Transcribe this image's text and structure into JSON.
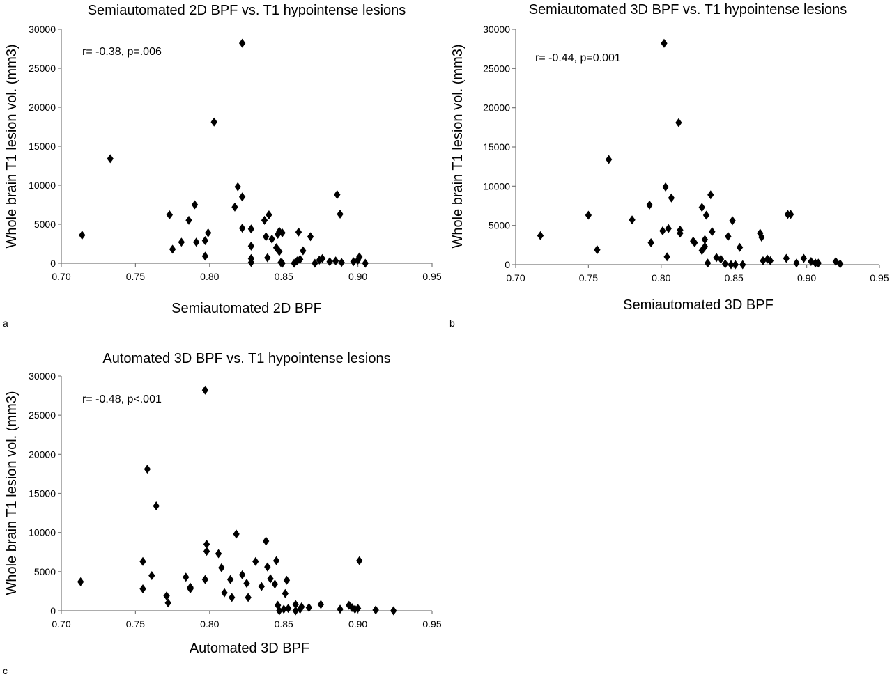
{
  "panels": [
    {
      "letter": "a"
    },
    {
      "letter": "b"
    },
    {
      "letter": "c"
    }
  ],
  "chart_data": [
    {
      "type": "scatter",
      "title": "Semiautomated 2D BPF vs. T1 hypointense lesions",
      "xlabel": "Semiautomated 2D BPF",
      "ylabel": "Whole brain T1 lesion  vol. (mm3)",
      "annotation": "r= -0.38, p=.006",
      "xlim": [
        0.7,
        0.95
      ],
      "ylim": [
        0,
        30000
      ],
      "xticks": [
        "0.70",
        "0.75",
        "0.80",
        "0.85",
        "0.90",
        "0.95"
      ],
      "yticks": [
        "0",
        "5000",
        "10000",
        "15000",
        "20000",
        "25000",
        "30000"
      ],
      "marker": "diamond",
      "grid": false,
      "points": [
        [
          0.714,
          3600
        ],
        [
          0.733,
          13400
        ],
        [
          0.773,
          6200
        ],
        [
          0.775,
          1800
        ],
        [
          0.781,
          2700
        ],
        [
          0.786,
          5500
        ],
        [
          0.79,
          7500
        ],
        [
          0.791,
          2700
        ],
        [
          0.797,
          2900
        ],
        [
          0.797,
          900
        ],
        [
          0.799,
          3900
        ],
        [
          0.803,
          18100
        ],
        [
          0.817,
          7200
        ],
        [
          0.819,
          9800
        ],
        [
          0.822,
          8500
        ],
        [
          0.822,
          4500
        ],
        [
          0.822,
          28200
        ],
        [
          0.828,
          4400
        ],
        [
          0.828,
          2200
        ],
        [
          0.828,
          600
        ],
        [
          0.828,
          100
        ],
        [
          0.837,
          5500
        ],
        [
          0.838,
          3400
        ],
        [
          0.839,
          700
        ],
        [
          0.84,
          6200
        ],
        [
          0.842,
          3100
        ],
        [
          0.845,
          2000
        ],
        [
          0.846,
          3700
        ],
        [
          0.847,
          4100
        ],
        [
          0.847,
          1500
        ],
        [
          0.848,
          100
        ],
        [
          0.849,
          3900
        ],
        [
          0.849,
          0
        ],
        [
          0.857,
          0
        ],
        [
          0.859,
          300
        ],
        [
          0.86,
          4000
        ],
        [
          0.861,
          500
        ],
        [
          0.863,
          1600
        ],
        [
          0.868,
          3400
        ],
        [
          0.871,
          0
        ],
        [
          0.874,
          400
        ],
        [
          0.876,
          600
        ],
        [
          0.881,
          200
        ],
        [
          0.885,
          300
        ],
        [
          0.886,
          8800
        ],
        [
          0.888,
          6300
        ],
        [
          0.889,
          100
        ],
        [
          0.897,
          200
        ],
        [
          0.9,
          400
        ],
        [
          0.901,
          800
        ],
        [
          0.905,
          0
        ]
      ]
    },
    {
      "type": "scatter",
      "title": "Semiautomated 3D BPF vs. T1 hypointense lesions",
      "xlabel": "Semiautomated 3D BPF",
      "ylabel": "Whole brain T1 lesion  vol. (mm3)",
      "annotation": "r= -0.44, p=0.001",
      "xlim": [
        0.7,
        0.95
      ],
      "ylim": [
        0,
        30000
      ],
      "xticks": [
        "0.70",
        "0.75",
        "0.80",
        "0.85",
        "0.90",
        "0.95"
      ],
      "yticks": [
        "0",
        "5000",
        "10000",
        "15000",
        "20000",
        "25000",
        "30000"
      ],
      "marker": "diamond",
      "grid": false,
      "points": [
        [
          0.717,
          3700
        ],
        [
          0.75,
          6300
        ],
        [
          0.756,
          1900
        ],
        [
          0.764,
          13400
        ],
        [
          0.78,
          5700
        ],
        [
          0.792,
          7600
        ],
        [
          0.793,
          2800
        ],
        [
          0.801,
          4300
        ],
        [
          0.802,
          28200
        ],
        [
          0.803,
          9900
        ],
        [
          0.804,
          1000
        ],
        [
          0.805,
          4600
        ],
        [
          0.807,
          8500
        ],
        [
          0.812,
          18100
        ],
        [
          0.813,
          4400
        ],
        [
          0.813,
          4000
        ],
        [
          0.822,
          3000
        ],
        [
          0.823,
          2800
        ],
        [
          0.828,
          7300
        ],
        [
          0.828,
          1800
        ],
        [
          0.83,
          3200
        ],
        [
          0.83,
          2300
        ],
        [
          0.831,
          6300
        ],
        [
          0.832,
          200
        ],
        [
          0.834,
          8900
        ],
        [
          0.835,
          4200
        ],
        [
          0.838,
          900
        ],
        [
          0.841,
          700
        ],
        [
          0.844,
          100
        ],
        [
          0.846,
          3600
        ],
        [
          0.848,
          0
        ],
        [
          0.849,
          5600
        ],
        [
          0.851,
          0
        ],
        [
          0.854,
          2200
        ],
        [
          0.856,
          0
        ],
        [
          0.868,
          4000
        ],
        [
          0.869,
          3500
        ],
        [
          0.87,
          500
        ],
        [
          0.873,
          700
        ],
        [
          0.875,
          500
        ],
        [
          0.886,
          800
        ],
        [
          0.887,
          6400
        ],
        [
          0.889,
          6400
        ],
        [
          0.893,
          200
        ],
        [
          0.898,
          800
        ],
        [
          0.903,
          400
        ],
        [
          0.906,
          200
        ],
        [
          0.908,
          200
        ],
        [
          0.92,
          400
        ],
        [
          0.923,
          100
        ]
      ]
    },
    {
      "type": "scatter",
      "title": "Automated 3D BPF vs. T1 hypointense lesions",
      "xlabel": "Automated 3D BPF",
      "ylabel": "Whole brain T1 lesion  vol. (mm3)",
      "annotation": "r= -0.48, p<.001",
      "xlim": [
        0.7,
        0.95
      ],
      "ylim": [
        0,
        30000
      ],
      "xticks": [
        "0.70",
        "0.75",
        "0.80",
        "0.85",
        "0.90",
        "0.95"
      ],
      "yticks": [
        "0",
        "5000",
        "10000",
        "15000",
        "20000",
        "25000",
        "30000"
      ],
      "marker": "diamond",
      "grid": false,
      "points": [
        [
          0.713,
          3700
        ],
        [
          0.755,
          6300
        ],
        [
          0.755,
          2800
        ],
        [
          0.758,
          18100
        ],
        [
          0.761,
          4500
        ],
        [
          0.764,
          13400
        ],
        [
          0.771,
          1900
        ],
        [
          0.772,
          1000
        ],
        [
          0.784,
          4300
        ],
        [
          0.787,
          3000
        ],
        [
          0.787,
          2800
        ],
        [
          0.797,
          28200
        ],
        [
          0.797,
          4000
        ],
        [
          0.798,
          8500
        ],
        [
          0.798,
          7600
        ],
        [
          0.806,
          7300
        ],
        [
          0.808,
          5500
        ],
        [
          0.81,
          2300
        ],
        [
          0.814,
          4000
        ],
        [
          0.815,
          1700
        ],
        [
          0.818,
          9800
        ],
        [
          0.822,
          4600
        ],
        [
          0.825,
          3500
        ],
        [
          0.826,
          1700
        ],
        [
          0.831,
          6300
        ],
        [
          0.835,
          3100
        ],
        [
          0.838,
          8900
        ],
        [
          0.839,
          5600
        ],
        [
          0.841,
          4100
        ],
        [
          0.844,
          3400
        ],
        [
          0.845,
          6400
        ],
        [
          0.846,
          700
        ],
        [
          0.847,
          0
        ],
        [
          0.85,
          200
        ],
        [
          0.851,
          2200
        ],
        [
          0.852,
          3900
        ],
        [
          0.853,
          300
        ],
        [
          0.858,
          800
        ],
        [
          0.858,
          0
        ],
        [
          0.861,
          200
        ],
        [
          0.862,
          500
        ],
        [
          0.867,
          400
        ],
        [
          0.875,
          800
        ],
        [
          0.888,
          200
        ],
        [
          0.894,
          700
        ],
        [
          0.896,
          400
        ],
        [
          0.898,
          200
        ],
        [
          0.9,
          300
        ],
        [
          0.901,
          6400
        ],
        [
          0.912,
          100
        ],
        [
          0.924,
          0
        ]
      ]
    }
  ]
}
